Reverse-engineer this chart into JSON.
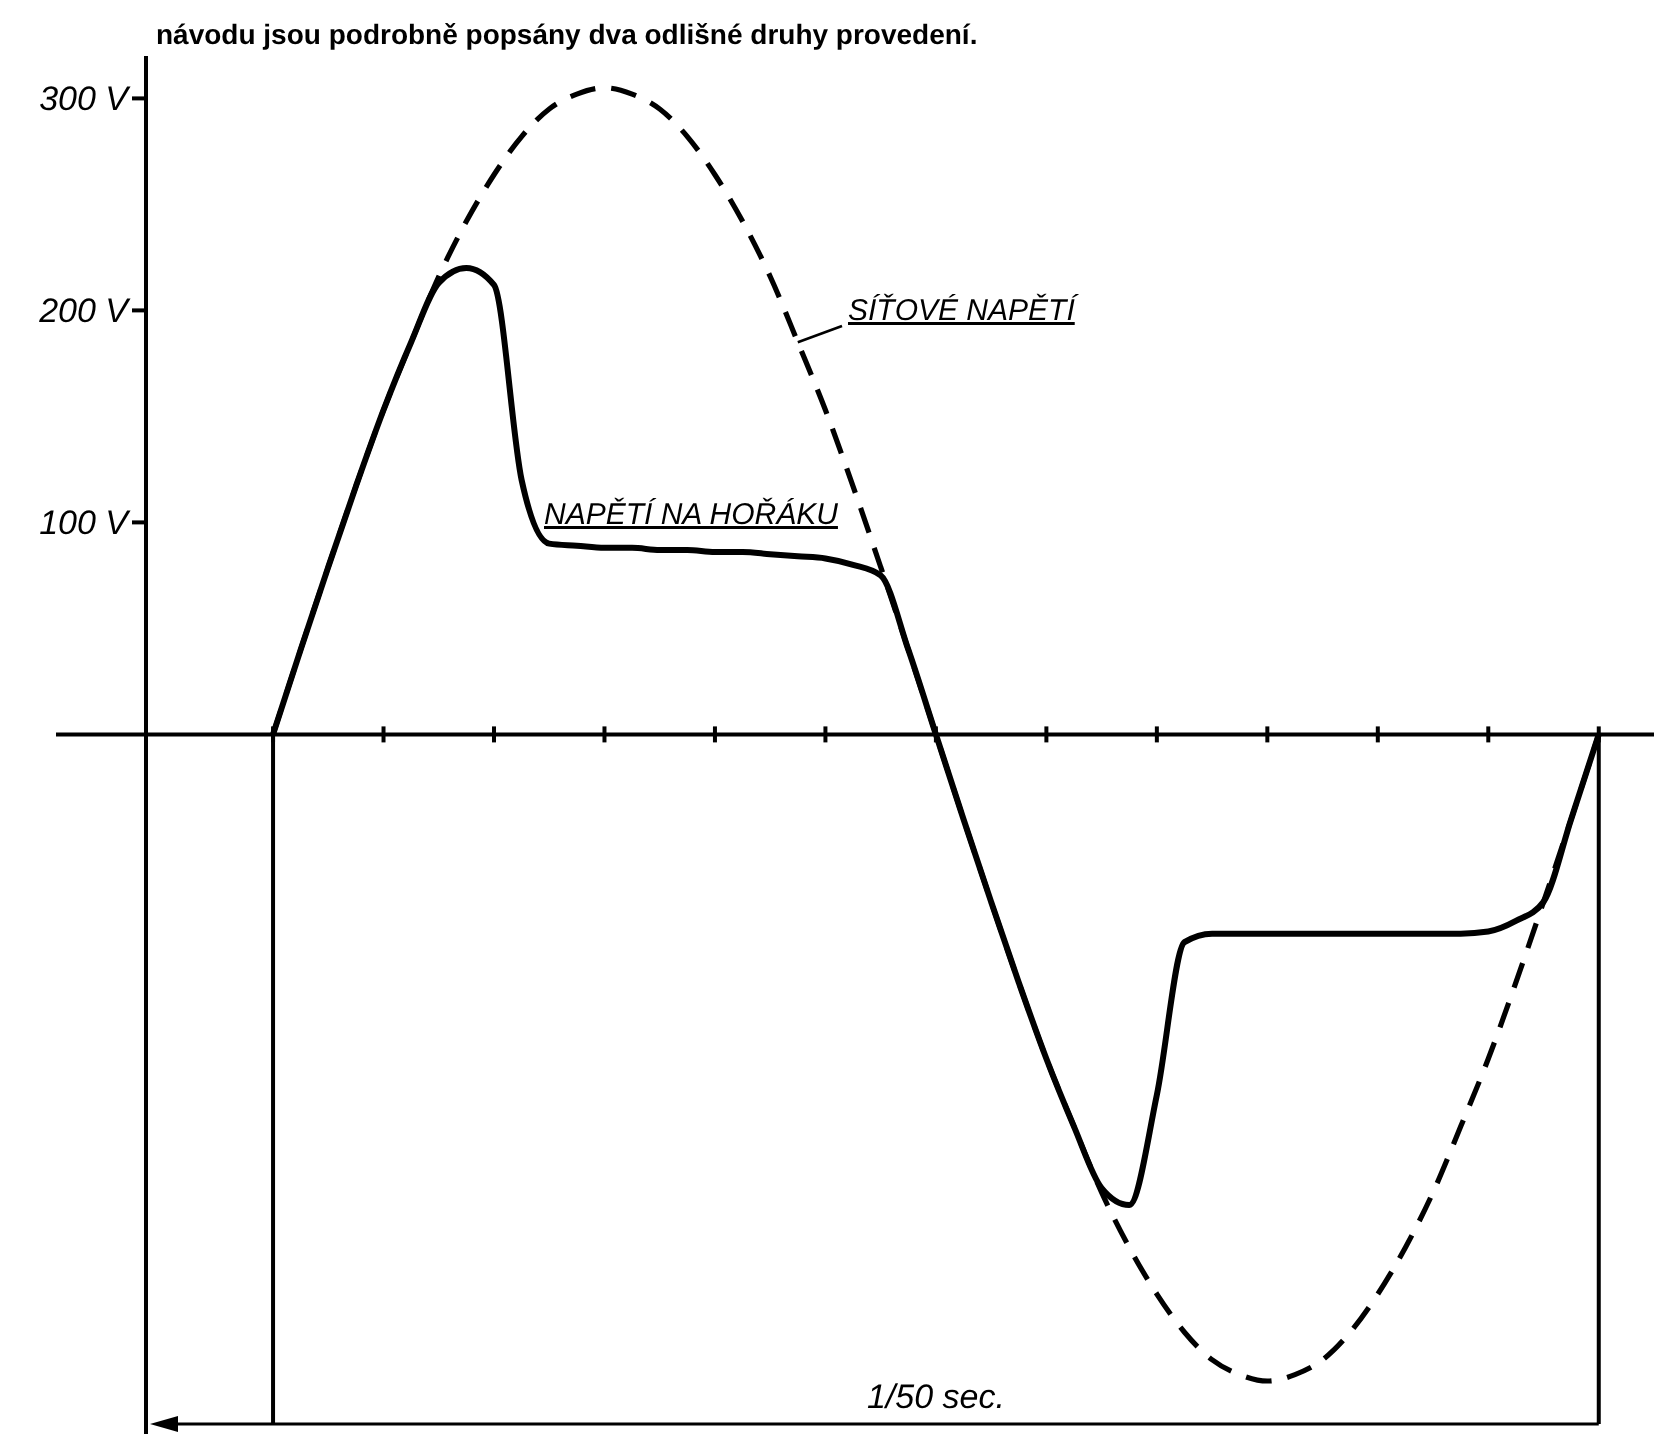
{
  "chart_data": {
    "type": "line",
    "categories": [
      null,
      null,
      null,
      null,
      null,
      null,
      null,
      null,
      null,
      null,
      null,
      null,
      null,
      null,
      null,
      null,
      null,
      null,
      null,
      null,
      null,
      null,
      null,
      null,
      null,
      null,
      null,
      null,
      null,
      null,
      null,
      null,
      null,
      null,
      null,
      null,
      null,
      null,
      null,
      null,
      null,
      null,
      null,
      null,
      null,
      null,
      null,
      null,
      null,
      null,
      null,
      null,
      null
    ],
    "ylim": [
      -330,
      320
    ],
    "yticks": [
      {
        "value": 100,
        "label": "100 V"
      },
      {
        "value": 200,
        "label": "200 V"
      },
      {
        "value": 300,
        "label": "300 V"
      }
    ],
    "tick_labels": "y",
    "legend": false,
    "marker": "none",
    "series": [
      {
        "name": "SÍŤOVÉ NAPĚTÍ",
        "color": "#000000",
        "line_style": "dashed",
        "values": [
          null,
          null,
          null,
          null,
          0,
          40,
          79,
          117,
          153,
          185,
          216,
          242,
          264,
          282,
          295,
          302,
          305,
          302,
          295,
          282,
          264,
          242,
          216,
          185,
          153,
          117,
          79,
          40,
          0,
          -40,
          -79,
          -117,
          -153,
          -185,
          -216,
          -242,
          -264,
          -282,
          -295,
          -302,
          -305,
          -302,
          -295,
          -282,
          -264,
          -242,
          -216,
          -185,
          -153,
          -117,
          -79,
          -40,
          0
        ]
      },
      {
        "name": "NAPĚTÍ NA HOŘÁKU",
        "color": "#000000",
        "line_style": "solid",
        "values": [
          null,
          null,
          null,
          null,
          0,
          40,
          79,
          117,
          153,
          185,
          213,
          220,
          212,
          120,
          90,
          89,
          88,
          88,
          87,
          87,
          86,
          86,
          85,
          84,
          83,
          80,
          75,
          40,
          0,
          -40,
          -79,
          -117,
          -153,
          -185,
          -214,
          -222,
          -170,
          -98,
          -94,
          -94,
          -94,
          -94,
          -94,
          -94,
          -94,
          -94,
          -94,
          -94,
          -93,
          -88,
          -79,
          -40,
          0
        ]
      }
    ],
    "annotations": [
      "návodu jsou podrobně popsány dva odlišné druhy provedení.",
      "1/50 sec."
    ]
  }
}
